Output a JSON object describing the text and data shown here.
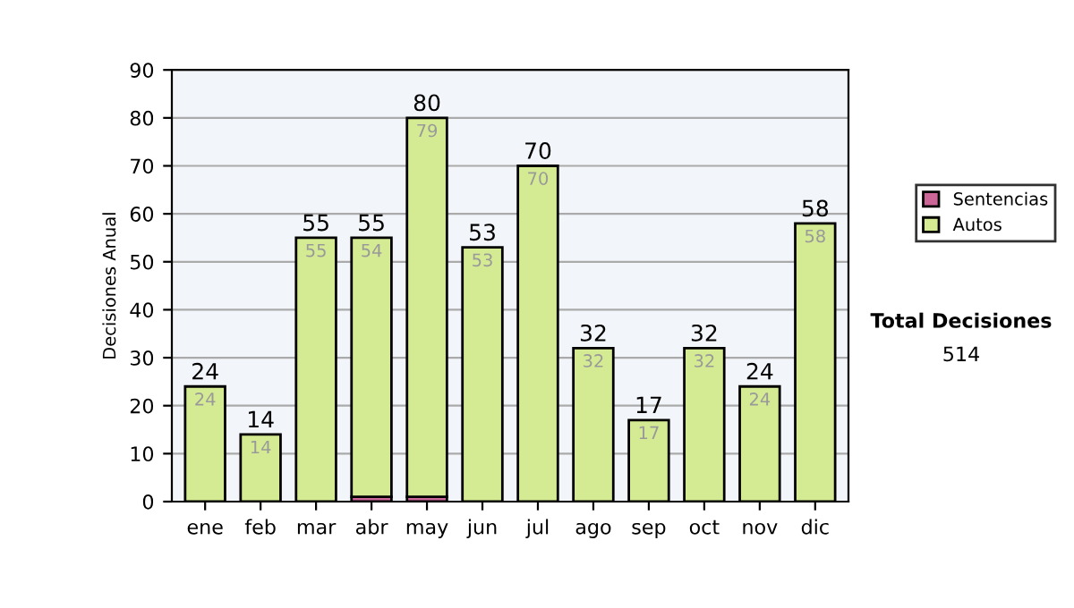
{
  "chart_data": {
    "type": "bar",
    "stacked": true,
    "ylabel": "Decisiones Anual",
    "categories": [
      "ene",
      "feb",
      "mar",
      "abr",
      "may",
      "jun",
      "jul",
      "ago",
      "sep",
      "oct",
      "nov",
      "dic"
    ],
    "series": [
      {
        "name": "Sentencias",
        "color": "#cc6699",
        "values": [
          0,
          0,
          0,
          1,
          1,
          0,
          0,
          0,
          0,
          0,
          0,
          0
        ]
      },
      {
        "name": "Autos",
        "color": "#d4eb94",
        "values": [
          24,
          14,
          55,
          54,
          79,
          53,
          70,
          32,
          17,
          32,
          24,
          58
        ],
        "value_labels": [
          "24",
          "14",
          "55",
          "54",
          "79",
          "53",
          "70",
          "32",
          "17",
          "32",
          "24",
          "58"
        ]
      }
    ],
    "totals": [
      "24",
      "14",
      "55",
      "55",
      "80",
      "53",
      "70",
      "32",
      "17",
      "32",
      "24",
      "58"
    ],
    "ylim": [
      0,
      90
    ],
    "yticks": [
      0,
      10,
      20,
      30,
      40,
      50,
      60,
      70,
      80,
      90
    ],
    "grid": "y",
    "legend": "right",
    "annotations": [
      "Total Decisiones",
      "514"
    ]
  }
}
